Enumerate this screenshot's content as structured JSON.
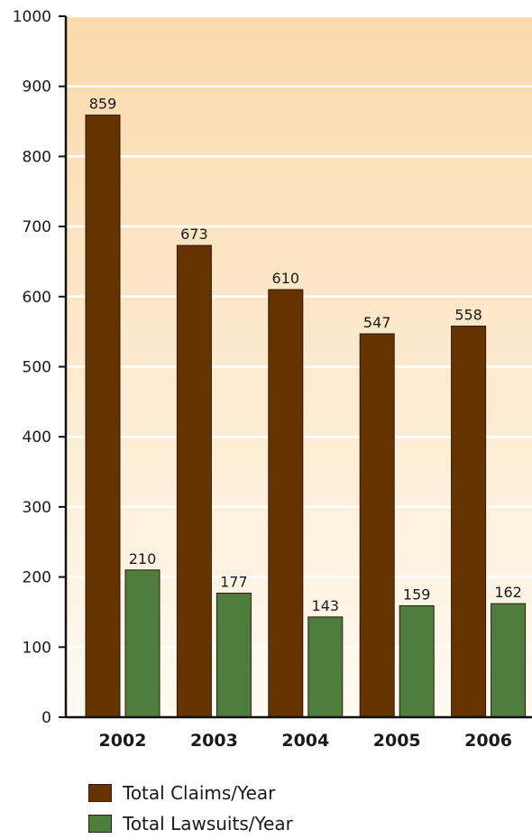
{
  "chart_data": {
    "type": "bar",
    "categories": [
      "2002",
      "2003",
      "2004",
      "2005",
      "2006"
    ],
    "series": [
      {
        "name": "Total Claims/Year",
        "values": [
          859,
          673,
          610,
          547,
          558
        ],
        "color": "#663300"
      },
      {
        "name": "Total Lawsuits/Year",
        "values": [
          210,
          177,
          143,
          159,
          162
        ],
        "color": "#4e7d3e"
      }
    ],
    "ylim": [
      0,
      1000
    ],
    "yticks": [
      0,
      100,
      200,
      300,
      400,
      500,
      600,
      700,
      800,
      900,
      1000
    ],
    "grid": true,
    "legend_position": "bottom-left",
    "title": "",
    "xlabel": "",
    "ylabel": "",
    "background_gradient": [
      "#fad9ab",
      "#fffaf2"
    ]
  },
  "legend": {
    "claims_label": "Total Claims/Year",
    "lawsuits_label": "Total Lawsuits/Year"
  }
}
